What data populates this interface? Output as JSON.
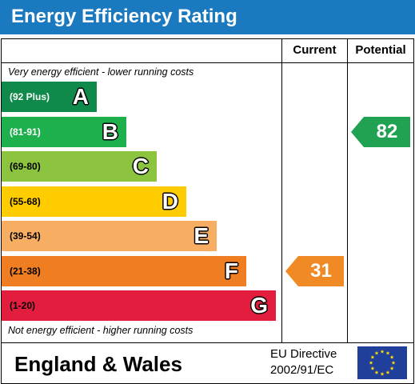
{
  "title": "Energy Efficiency Rating",
  "columns": {
    "current": "Current",
    "potential": "Potential"
  },
  "top_note": "Very energy efficient - lower running costs",
  "bottom_note": "Not energy efficient - higher running costs",
  "footer": {
    "country": "England & Wales",
    "directive_line1": "EU Directive",
    "directive_line2": "2002/91/EC",
    "flag_icon": "eu-flag-icon"
  },
  "colors": {
    "header": "#1a79bf",
    "current_arrow": "#f08a24",
    "potential_arrow": "#21a152"
  },
  "chart_data": {
    "type": "bar",
    "title": "Energy Efficiency Rating",
    "categories": [
      "A",
      "B",
      "C",
      "D",
      "E",
      "F",
      "G"
    ],
    "ranges": [
      "(92 Plus)",
      "(81-91)",
      "(69-80)",
      "(55-68)",
      "(39-54)",
      "(21-38)",
      "(1-20)"
    ],
    "band_colors": [
      "#0f8a4a",
      "#1fb04e",
      "#8cc43f",
      "#ffcc00",
      "#f7ae63",
      "#ef7d22",
      "#e31d3d"
    ],
    "range_text_colors": [
      "#ffffff",
      "#ffffff",
      "#000000",
      "#000000",
      "#000000",
      "#000000",
      "#000000"
    ],
    "current": {
      "label": "Current",
      "value": 31,
      "band": "F"
    },
    "potential": {
      "label": "Potential",
      "value": 82,
      "band": "B"
    }
  }
}
